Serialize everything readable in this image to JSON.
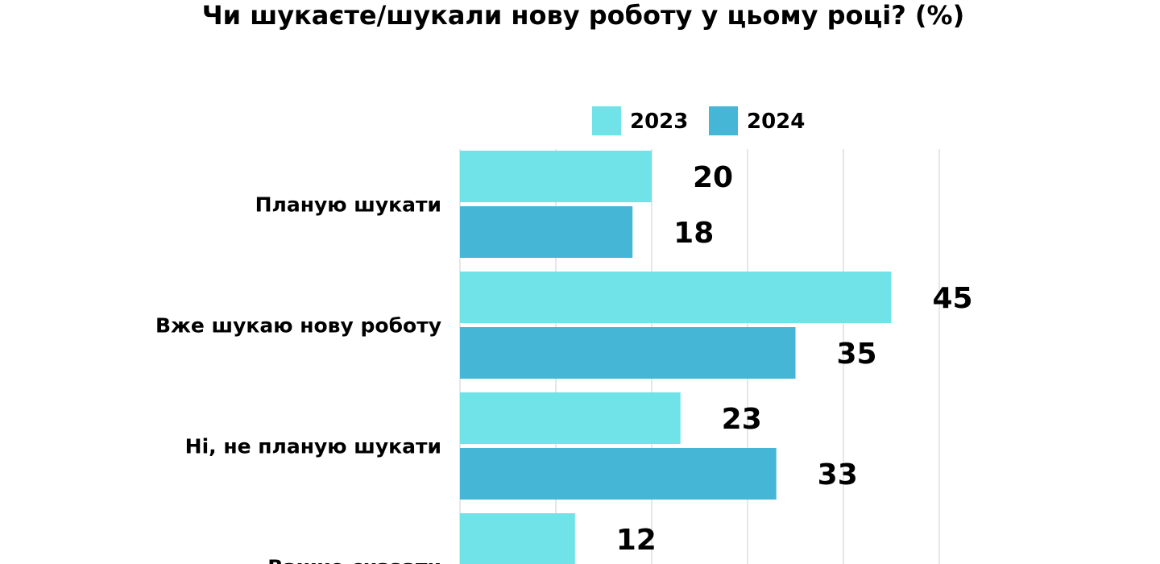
{
  "chart_data": {
    "type": "bar",
    "orientation": "horizontal",
    "title": "Чи шукаєте/шукали нову роботу у цьому році? (%)",
    "categories": [
      "Планую шукати",
      "Вже шукаю нову роботу",
      "Ні, не планую шукати",
      "Важко сказати"
    ],
    "series": [
      {
        "name": "2023",
        "values": [
          20,
          45,
          23,
          12
        ],
        "labels": [
          "20",
          "45",
          "23",
          "12"
        ],
        "color": "#6fe3e8"
      },
      {
        "name": "2024",
        "values": [
          18,
          35,
          33,
          null
        ],
        "labels": [
          "18",
          "35",
          "33",
          ""
        ],
        "color": "#45b6d6"
      }
    ],
    "xlim": [
      0,
      50
    ],
    "grid": true,
    "legend_position": "top-center",
    "grid_color": "#dddddd"
  }
}
